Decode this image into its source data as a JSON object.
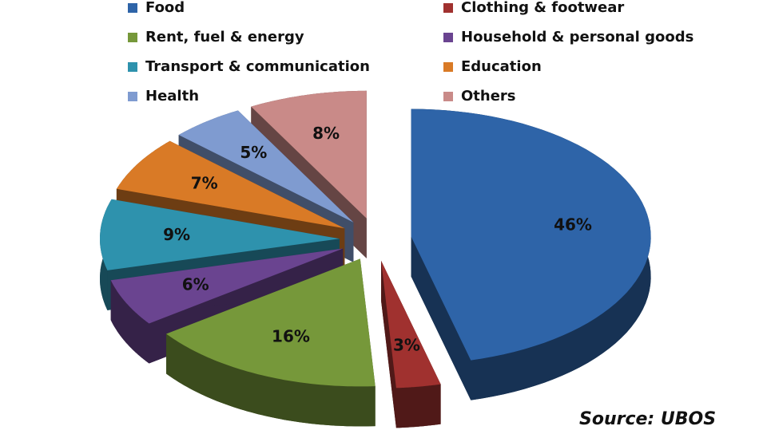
{
  "chart_data": {
    "type": "pie",
    "categories": [
      "Food",
      "Clothing & footwear",
      "Rent, fuel & energy",
      "Household & personal goods",
      "Transport & communication",
      "Education",
      "Health",
      "Others"
    ],
    "values": [
      46,
      3,
      16,
      6,
      9,
      7,
      5,
      8
    ],
    "value_labels": [
      "46%",
      "3%",
      "16%",
      "6%",
      "9%",
      "7%",
      "5%",
      "8%"
    ],
    "colors": [
      "#2e64a8",
      "#a0312f",
      "#76983a",
      "#6a4490",
      "#2e92ad",
      "#d97a26",
      "#7f9bd0",
      "#c98a88"
    ],
    "annotation": "Source: UBOS"
  }
}
